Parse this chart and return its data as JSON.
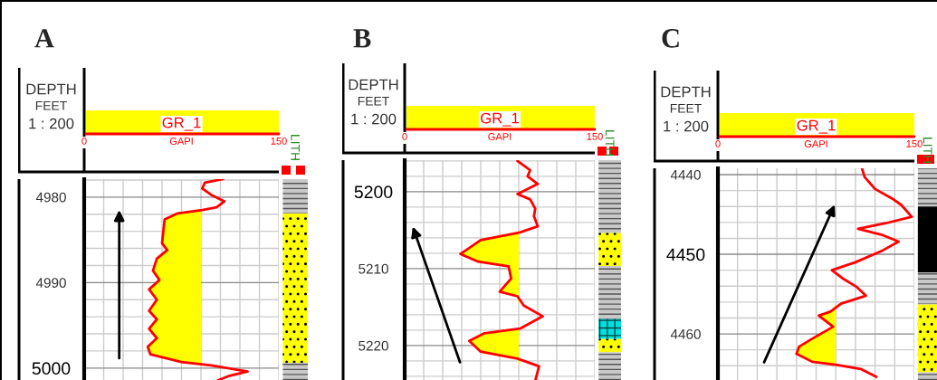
{
  "chart_data": [
    {
      "type": "line",
      "title": "A",
      "orientation": "horizontal",
      "ylabel": "DEPTH",
      "xlabel": "GAPI",
      "annotations": [
        "FEET",
        "1 : 200",
        "LITH"
      ],
      "grid": true,
      "xlim": [
        0,
        150
      ],
      "xticks": [
        0,
        {
          "value": 15,
          "label": null
        },
        {
          "value": 30,
          "label": null
        },
        {
          "value": 45,
          "label": null
        },
        {
          "value": 60,
          "label": null
        },
        {
          "value": 75,
          "label": null
        },
        {
          "value": 90,
          "label": null
        },
        {
          "value": 105,
          "label": null
        },
        {
          "value": 120,
          "label": null
        },
        {
          "value": 135,
          "label": null
        },
        150
      ],
      "ylim": [
        5001.5,
        4977.9
      ],
      "yticks": [
        {
          "value": 4978,
          "label": null
        },
        4980,
        {
          "value": 4982,
          "label": null
        },
        {
          "value": 4984,
          "label": null
        },
        {
          "value": 4986,
          "label": null
        },
        {
          "value": 4988,
          "label": null
        },
        4990,
        {
          "value": 4992,
          "label": null
        },
        {
          "value": 4994,
          "label": null
        },
        {
          "value": 4996,
          "label": null
        },
        {
          "value": 4998,
          "label": null
        },
        5000
      ],
      "series": [
        {
          "name": "GR_1",
          "color": "#ff0000",
          "x": [
            4977.9,
            4978.3,
            4979.0,
            4979.75,
            4980.5,
            4981.2,
            4981.5,
            4981.9,
            4982.6,
            4984.0,
            4985.4,
            4986.2,
            4987.2,
            4988.6,
            4989.7,
            4990.8,
            4992.0,
            4993.3,
            4994.3,
            4995.4,
            4996.5,
            4997.5,
            4998.4,
            4999.3,
            4999.7,
            5000.4,
            5000.9,
            5001.5
          ],
          "values": [
            107,
            93,
            91,
            98,
            108,
            102,
            91,
            72,
            62,
            61,
            60,
            64,
            56,
            53,
            58,
            50,
            56,
            50,
            56,
            50,
            56,
            49,
            51,
            75,
            98,
            126,
            112,
            102
          ],
          "lower": [
            90,
            90,
            90,
            90,
            90,
            90,
            90,
            72,
            62,
            61,
            60,
            64,
            56,
            53,
            58,
            50,
            56,
            50,
            56,
            50,
            56,
            49,
            51,
            75,
            90,
            90,
            90,
            90
          ],
          "upper": [
            90,
            90,
            90,
            90,
            90,
            90,
            90,
            90,
            90,
            90,
            90,
            90,
            90,
            90,
            90,
            90,
            90,
            90,
            90,
            90,
            90,
            90,
            90,
            90,
            90,
            90,
            90,
            90
          ]
        }
      ]
    },
    {
      "type": "line",
      "title": "B",
      "orientation": "horizontal",
      "ylabel": "DEPTH",
      "xlabel": "GAPI",
      "annotations": [
        "FEET",
        "1 : 200",
        "LITH"
      ],
      "grid": true,
      "xlim": [
        0,
        150
      ],
      "xticks": [
        0,
        {
          "value": 15,
          "label": null
        },
        {
          "value": 30,
          "label": null
        },
        {
          "value": 45,
          "label": null
        },
        {
          "value": 60,
          "label": null
        },
        {
          "value": 75,
          "label": null
        },
        {
          "value": 90,
          "label": null
        },
        {
          "value": 105,
          "label": null
        },
        {
          "value": 120,
          "label": null
        },
        {
          "value": 135,
          "label": null
        },
        150
      ],
      "ylim": [
        5224.6,
        5195.9
      ],
      "yticks": [
        {
          "value": 5196,
          "label": null
        },
        {
          "value": 5198,
          "label": null
        },
        5200,
        {
          "value": 5202,
          "label": null
        },
        {
          "value": 5204,
          "label": null
        },
        {
          "value": 5206,
          "label": null
        },
        {
          "value": 5208,
          "label": null
        },
        5210,
        {
          "value": 5212,
          "label": null
        },
        {
          "value": 5214,
          "label": null
        },
        {
          "value": 5216,
          "label": null
        },
        {
          "value": 5218,
          "label": null
        },
        5220,
        {
          "value": 5222,
          "label": null
        },
        {
          "value": 5224,
          "label": null
        }
      ],
      "series": [
        {
          "name": "GR_1",
          "color": "#ff0000",
          "x": [
            5196.0,
            5197.2,
            5198.0,
            5199.0,
            5200.3,
            5201.0,
            5202.2,
            5203.2,
            5204.5,
            5205.3,
            5206.3,
            5208.1,
            5209.1,
            5209.7,
            5211.3,
            5213.0,
            5213.6,
            5214.8,
            5216.2,
            5217.8,
            5218.4,
            5219.4,
            5220.8,
            5221.7,
            5222.7,
            5224.6
          ],
          "values": [
            89,
            99,
            97,
            105,
            89,
            99,
            103,
            102,
            105,
            91,
            60,
            44,
            58,
            82,
            84,
            75,
            89,
            94,
            109,
            91,
            63,
            51,
            60,
            89,
            106,
            103
          ],
          "lower": [
            90,
            90,
            90,
            90,
            90,
            90,
            90,
            90,
            90,
            90,
            60,
            44,
            58,
            82,
            84,
            75,
            89,
            90,
            90,
            90,
            63,
            51,
            60,
            89,
            90,
            90
          ],
          "upper": [
            90,
            90,
            90,
            90,
            90,
            90,
            90,
            90,
            90,
            90,
            90,
            90,
            90,
            90,
            90,
            90,
            90,
            90,
            90,
            90,
            90,
            90,
            90,
            90,
            90,
            90
          ]
        }
      ]
    },
    {
      "type": "line",
      "title": "C",
      "orientation": "horizontal",
      "ylabel": "DEPTH",
      "xlabel": "GAPI",
      "annotations": [
        "FEET",
        "1 : 200",
        "LITH"
      ],
      "grid": true,
      "xlim": [
        0,
        150
      ],
      "xticks": [
        0,
        {
          "value": 15,
          "label": null
        },
        {
          "value": 30,
          "label": null
        },
        {
          "value": 45,
          "label": null
        },
        {
          "value": 60,
          "label": null
        },
        {
          "value": 75,
          "label": null
        },
        {
          "value": 90,
          "label": null
        },
        {
          "value": 105,
          "label": null
        },
        {
          "value": 120,
          "label": null
        },
        {
          "value": 135,
          "label": null
        },
        150
      ],
      "ylim": [
        4465.9,
        4439.2
      ],
      "yticks": [
        4440,
        {
          "value": 4442,
          "label": null
        },
        {
          "value": 4444,
          "label": null
        },
        {
          "value": 4446,
          "label": null
        },
        {
          "value": 4448,
          "label": null
        },
        4450,
        {
          "value": 4452,
          "label": null
        },
        {
          "value": 4454,
          "label": null
        },
        {
          "value": 4456,
          "label": null
        },
        {
          "value": 4458,
          "label": null
        },
        4460,
        {
          "value": 4462,
          "label": null
        },
        {
          "value": 4464,
          "label": null
        }
      ],
      "series": [
        {
          "name": "GR_1",
          "color": "#ff0000",
          "x": [
            4439.2,
            4440.3,
            4441.8,
            4443.0,
            4443.8,
            4445.3,
            4446.1,
            4446.8,
            4447.6,
            4448.4,
            4449.5,
            4451.0,
            4452.0,
            4453.0,
            4454.1,
            4455.2,
            4456.2,
            4457.2,
            4457.7,
            4459.1,
            4460.6,
            4461.6,
            4462.5,
            4463.5,
            4463.9,
            4464.4,
            4465.4
          ],
          "values": [
            110,
            112,
            120,
            133,
            140,
            148,
            128,
            107,
            126,
            138,
            126,
            105,
            87,
            95,
            106,
            113,
            94,
            86,
            77,
            88,
            72,
            62,
            60,
            72,
            91,
            109,
            121
          ],
          "lower": [
            90,
            90,
            90,
            90,
            90,
            90,
            90,
            90,
            90,
            90,
            90,
            90,
            90,
            90,
            90,
            90,
            90,
            86,
            77,
            88,
            72,
            62,
            60,
            72,
            90,
            90,
            90
          ],
          "upper": [
            90,
            90,
            90,
            90,
            90,
            90,
            90,
            90,
            90,
            90,
            90,
            90,
            90,
            90,
            90,
            90,
            90,
            90,
            90,
            90,
            90,
            90,
            90,
            90,
            90,
            90,
            90
          ]
        }
      ]
    }
  ]
}
